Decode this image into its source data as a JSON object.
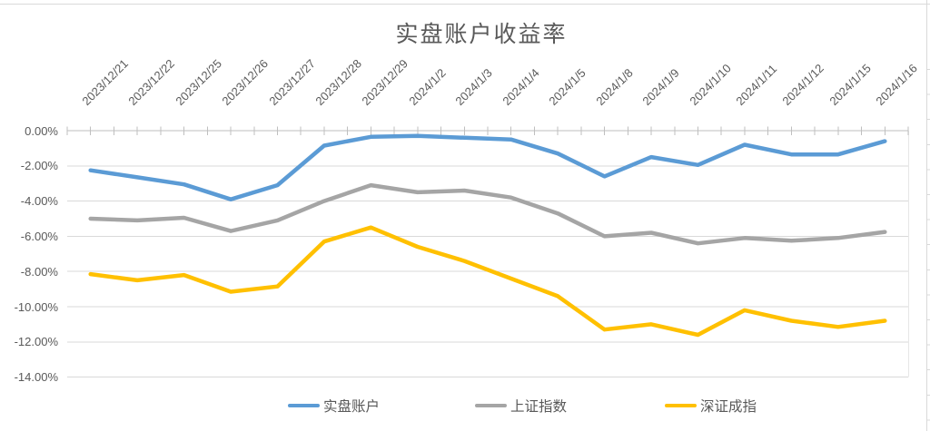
{
  "title": "实盘账户收益率",
  "chart_data": {
    "type": "line",
    "title": "实盘账户收益率",
    "categories": [
      "2023/12/21",
      "2023/12/22",
      "2023/12/25",
      "2023/12/26",
      "2023/12/27",
      "2023/12/28",
      "2023/12/29",
      "2024/1/2",
      "2024/1/3",
      "2024/1/4",
      "2024/1/5",
      "2024/1/8",
      "2024/1/9",
      "2024/1/10",
      "2024/1/11",
      "2024/1/12",
      "2024/1/15",
      "2024/1/16"
    ],
    "series": [
      {
        "name": "实盘账户",
        "color": "#5B9BD5",
        "values": [
          -2.25,
          -2.65,
          -3.05,
          -3.9,
          -3.1,
          -0.85,
          -0.35,
          -0.3,
          -0.4,
          -0.5,
          -1.3,
          -2.6,
          -1.5,
          -1.95,
          -0.8,
          -1.35,
          -1.35,
          -0.6
        ]
      },
      {
        "name": "上证指数",
        "color": "#A5A5A5",
        "values": [
          -5.0,
          -5.1,
          -4.95,
          -5.7,
          -5.1,
          -4.0,
          -3.1,
          -3.5,
          -3.4,
          -3.8,
          -4.7,
          -6.0,
          -5.8,
          -6.4,
          -6.1,
          -6.25,
          -6.1,
          -5.75
        ]
      },
      {
        "name": "深证成指",
        "color": "#FFC000",
        "values": [
          -8.15,
          -8.5,
          -8.2,
          -9.15,
          -8.85,
          -6.3,
          -5.5,
          -6.6,
          -7.4,
          -8.4,
          -9.4,
          -11.3,
          -11.0,
          -11.6,
          -10.2,
          -10.8,
          -11.15,
          -10.8
        ]
      }
    ],
    "y_axis": {
      "min": -14,
      "max": 0,
      "step": 2,
      "unit": "%",
      "tick_labels": [
        "0.00%",
        "-2.00%",
        "-4.00%",
        "-6.00%",
        "-8.00%",
        "-10.00%",
        "-12.00%",
        "-14.00%"
      ]
    },
    "grid": true,
    "legend_position": "bottom",
    "legend_labels": [
      "实盘账户",
      "上证指数",
      "深证成指"
    ]
  },
  "colors": {
    "accent_blue": "#5B9BD5",
    "accent_gray": "#A5A5A5",
    "accent_yellow": "#FFC000",
    "text": "#595959",
    "gridline": "#D9D9D9",
    "axis_line": "#BFBFBF"
  }
}
